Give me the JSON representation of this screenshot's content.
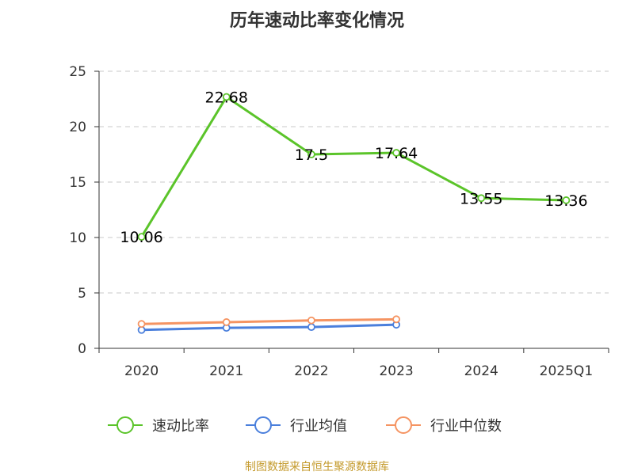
{
  "chart_data": {
    "type": "line",
    "title": "历年速动比率变化情况",
    "categories": [
      "2020",
      "2021",
      "2022",
      "2023",
      "2024",
      "2025Q1"
    ],
    "ylim": [
      0,
      25
    ],
    "yticks": [
      0,
      5,
      10,
      15,
      20,
      25
    ],
    "grid": true,
    "legend_position": "bottom",
    "series": [
      {
        "name": "速动比率",
        "color": "#5bc42a",
        "values": [
          10.06,
          22.68,
          17.5,
          17.64,
          13.55,
          13.36
        ],
        "labels": [
          "10.06",
          "22.68",
          "17.5",
          "17.64",
          "13.55",
          "13.36"
        ]
      },
      {
        "name": "行业均值",
        "color": "#4a7fdc",
        "values": [
          1.66,
          1.85,
          1.92,
          2.13,
          null,
          null
        ]
      },
      {
        "name": "行业中位数",
        "color": "#f59462",
        "values": [
          2.2,
          2.36,
          2.52,
          2.62,
          null,
          null
        ]
      }
    ]
  },
  "source": "制图数据来自恒生聚源数据库"
}
